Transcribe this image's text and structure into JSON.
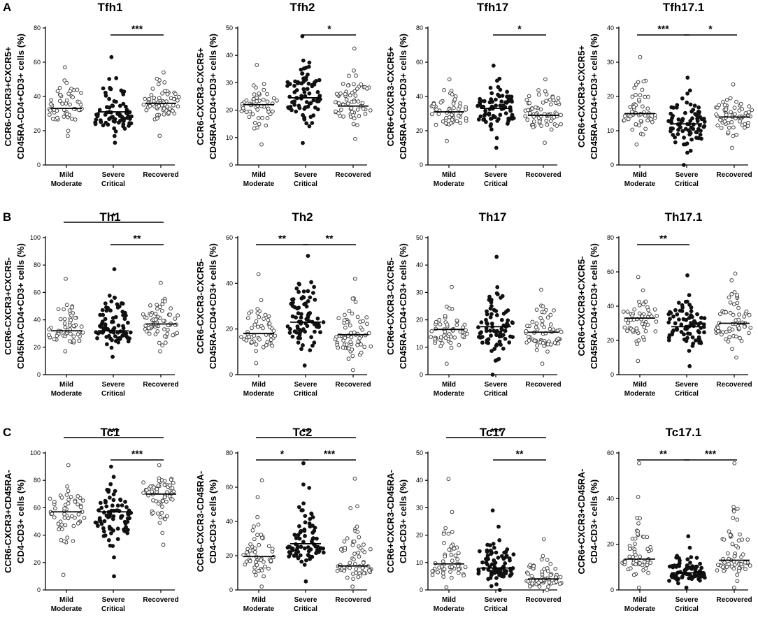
{
  "colors": {
    "axis": "#000000",
    "filled": "#111111",
    "open_fill": "#ffffff",
    "open_stroke": "#444444"
  },
  "chart_data": [
    {
      "type": "scatter",
      "panel_label": "A",
      "title": "Tfh1",
      "ylabel": [
        "CCR6-CXCR3+CXCR5+",
        "CD45RA-CD4+CD3+ cells (%)"
      ],
      "ylim": [
        0,
        80
      ],
      "yticks": [
        0,
        20,
        40,
        60,
        80
      ],
      "categories": [
        [
          "Mild",
          "Moderate"
        ],
        [
          "Severe",
          "Critical"
        ],
        [
          "Recovered"
        ]
      ],
      "series": [
        {
          "name": "Mild Moderate",
          "mean": 33,
          "min": 17,
          "max": 57,
          "n": 55
        },
        {
          "name": "Severe Critical",
          "mean": 31,
          "min": 13,
          "max": 63,
          "n": 80
        },
        {
          "name": "Recovered",
          "mean": 36,
          "min": 17,
          "max": 54,
          "n": 65
        }
      ],
      "significance": [
        {
          "from": 1,
          "to": 2,
          "label": "***"
        }
      ]
    },
    {
      "type": "scatter",
      "title": "Tfh2",
      "ylabel": [
        "CCR6-CXCR3-CXCR5+",
        "CD45RA-CD4+CD3+ cells (%)"
      ],
      "ylim": [
        0,
        50
      ],
      "yticks": [
        0,
        10,
        20,
        30,
        40,
        50
      ],
      "categories": [
        [
          "Mild",
          "Moderate"
        ],
        [
          "Severe",
          "Critical"
        ],
        [
          "Recovered"
        ]
      ],
      "series": [
        {
          "name": "Mild Moderate",
          "mean": 22,
          "min": 7.5,
          "max": 36.5,
          "n": 55
        },
        {
          "name": "Severe Critical",
          "mean": 24.5,
          "min": 8,
          "max": 47,
          "n": 80
        },
        {
          "name": "Recovered",
          "mean": 21.5,
          "min": 9.5,
          "max": 42.5,
          "n": 65
        }
      ],
      "significance": [
        {
          "from": 1,
          "to": 2,
          "label": "*"
        }
      ]
    },
    {
      "type": "scatter",
      "title": "Tfh17",
      "ylabel": [
        "CCR6+CXCR3-CXCR5+",
        "CD45RA-CD4+CD3+ cells (%)"
      ],
      "ylim": [
        0,
        80
      ],
      "yticks": [
        0,
        20,
        40,
        60,
        80
      ],
      "categories": [
        [
          "Mild",
          "Moderate"
        ],
        [
          "Severe",
          "Critical"
        ],
        [
          "Recovered"
        ]
      ],
      "series": [
        {
          "name": "Mild Moderate",
          "mean": 31,
          "min": 14,
          "max": 50,
          "n": 55
        },
        {
          "name": "Severe Critical",
          "mean": 33,
          "min": 10,
          "max": 58,
          "n": 80
        },
        {
          "name": "Recovered",
          "mean": 29,
          "min": 13,
          "max": 50,
          "n": 65
        }
      ],
      "significance": [
        {
          "from": 1,
          "to": 2,
          "label": "*"
        }
      ]
    },
    {
      "type": "scatter",
      "title": "Tfh17.1",
      "ylabel": [
        "CCR6+CXCR3+CXCR5+",
        "CD45RA-CD4+CD3+ cells (%)"
      ],
      "ylim": [
        0,
        40
      ],
      "yticks": [
        0,
        10,
        20,
        30,
        40
      ],
      "categories": [
        [
          "Mild",
          "Moderate"
        ],
        [
          "Severe",
          "Critical"
        ],
        [
          "Recovered"
        ]
      ],
      "series": [
        {
          "name": "Mild Moderate",
          "mean": 15,
          "min": 6,
          "max": 31.5,
          "n": 55
        },
        {
          "name": "Severe Critical",
          "mean": 12,
          "min": 0,
          "max": 25.5,
          "n": 80
        },
        {
          "name": "Recovered",
          "mean": 14,
          "min": 5,
          "max": 23.5,
          "n": 65
        }
      ],
      "significance": [
        {
          "from": 0,
          "to": 1,
          "label": "***"
        },
        {
          "from": 1,
          "to": 2,
          "label": "*"
        }
      ]
    },
    {
      "type": "scatter",
      "panel_label": "B",
      "title": "Th1",
      "ylabel": [
        "CCR6-CXCR3+CXCR5-",
        "CD45RA-CD4+CD3+ cells (%)"
      ],
      "ylim": [
        0,
        100
      ],
      "yticks": [
        0,
        20,
        40,
        60,
        80,
        100
      ],
      "categories": [
        [
          "Mild",
          "Moderate"
        ],
        [
          "Severe",
          "Critical"
        ],
        [
          "Recovered"
        ]
      ],
      "series": [
        {
          "name": "Mild Moderate",
          "mean": 32,
          "min": 17,
          "max": 70,
          "n": 55
        },
        {
          "name": "Severe Critical",
          "mean": 32,
          "min": 13,
          "max": 77,
          "n": 80
        },
        {
          "name": "Recovered",
          "mean": 37,
          "min": 17,
          "max": 67,
          "n": 65
        }
      ],
      "significance": [
        {
          "from": 0,
          "to": 2,
          "label": "*"
        },
        {
          "from": 1,
          "to": 2,
          "label": "**"
        }
      ]
    },
    {
      "type": "scatter",
      "title": "Th2",
      "ylabel": [
        "CCR6-CXCR3-CXCR5-",
        "CD45RA-CD4+CD3+ cells (%)"
      ],
      "ylim": [
        0,
        60
      ],
      "yticks": [
        0,
        20,
        40,
        60
      ],
      "categories": [
        [
          "Mild",
          "Moderate"
        ],
        [
          "Severe",
          "Critical"
        ],
        [
          "Recovered"
        ]
      ],
      "series": [
        {
          "name": "Mild Moderate",
          "mean": 18,
          "min": 5,
          "max": 44,
          "n": 55
        },
        {
          "name": "Severe Critical",
          "mean": 23,
          "min": 4,
          "max": 52,
          "n": 80
        },
        {
          "name": "Recovered",
          "mean": 17.5,
          "min": 2,
          "max": 42,
          "n": 65
        }
      ],
      "significance": [
        {
          "from": 0,
          "to": 1,
          "label": "**"
        },
        {
          "from": 1,
          "to": 2,
          "label": "**"
        }
      ]
    },
    {
      "type": "scatter",
      "title": "Th17",
      "ylabel": [
        "CCR6+CXCR3-CXCR5-",
        "CD45RA-CD4+CD3+ cells (%)"
      ],
      "ylim": [
        0,
        50
      ],
      "yticks": [
        0,
        10,
        20,
        30,
        40,
        50
      ],
      "categories": [
        [
          "Mild",
          "Moderate"
        ],
        [
          "Severe",
          "Critical"
        ],
        [
          "Recovered"
        ]
      ],
      "series": [
        {
          "name": "Mild Moderate",
          "mean": 16.5,
          "min": 4,
          "max": 32,
          "n": 55
        },
        {
          "name": "Severe Critical",
          "mean": 17.5,
          "min": 0,
          "max": 43,
          "n": 80
        },
        {
          "name": "Recovered",
          "mean": 15.5,
          "min": 4,
          "max": 31,
          "n": 65
        }
      ],
      "significance": []
    },
    {
      "type": "scatter",
      "title": "Th17.1",
      "ylabel": [
        "CCR6+CXCR3+CXCR5-",
        "CD45RA-CD4+CD3+ cells (%)"
      ],
      "ylim": [
        0,
        80
      ],
      "yticks": [
        0,
        20,
        40,
        60,
        80
      ],
      "categories": [
        [
          "Mild",
          "Moderate"
        ],
        [
          "Severe",
          "Critical"
        ],
        [
          "Recovered"
        ]
      ],
      "series": [
        {
          "name": "Mild Moderate",
          "mean": 33,
          "min": 8,
          "max": 57,
          "n": 55
        },
        {
          "name": "Severe Critical",
          "mean": 28,
          "min": 5,
          "max": 58,
          "n": 80
        },
        {
          "name": "Recovered",
          "mean": 30,
          "min": 10,
          "max": 59,
          "n": 65
        }
      ],
      "significance": [
        {
          "from": 0,
          "to": 1,
          "label": "**"
        }
      ]
    },
    {
      "type": "scatter",
      "panel_label": "C",
      "title": "Tc1",
      "ylabel": [
        "CCR6-CXCR3+CD45RA-",
        "CD4-CD3+ cells (%)"
      ],
      "ylim": [
        0,
        100
      ],
      "yticks": [
        0,
        20,
        40,
        60,
        80,
        100
      ],
      "categories": [
        [
          "Mild",
          "Moderate"
        ],
        [
          "Severe",
          "Critical"
        ],
        [
          "Recovered"
        ]
      ],
      "series": [
        {
          "name": "Mild Moderate",
          "mean": 57,
          "min": 11,
          "max": 91,
          "n": 55
        },
        {
          "name": "Severe Critical",
          "mean": 57,
          "min": 10,
          "max": 90,
          "n": 80
        },
        {
          "name": "Recovered",
          "mean": 70,
          "min": 33,
          "max": 91,
          "n": 65
        }
      ],
      "significance": [
        {
          "from": 0,
          "to": 2,
          "label": "***"
        },
        {
          "from": 1,
          "to": 2,
          "label": "***"
        }
      ]
    },
    {
      "type": "scatter",
      "title": "Tc2",
      "ylabel": [
        "CCR6-CXCR3-CD45RA-",
        "CD4-CD3+ cells (%)"
      ],
      "ylim": [
        0,
        80
      ],
      "yticks": [
        0,
        20,
        40,
        60,
        80
      ],
      "categories": [
        [
          "Mild",
          "Moderate"
        ],
        [
          "Severe",
          "Critical"
        ],
        [
          "Recovered"
        ]
      ],
      "series": [
        {
          "name": "Mild Moderate",
          "mean": 19.5,
          "min": 2,
          "max": 64,
          "n": 55
        },
        {
          "name": "Severe Critical",
          "mean": 27,
          "min": 5,
          "max": 74,
          "n": 80
        },
        {
          "name": "Recovered",
          "mean": 14,
          "min": 2,
          "max": 65,
          "n": 65
        }
      ],
      "significance": [
        {
          "from": 0,
          "to": 2,
          "label": "**"
        },
        {
          "from": 0,
          "to": 1,
          "label": "*"
        },
        {
          "from": 1,
          "to": 2,
          "label": "***"
        }
      ]
    },
    {
      "type": "scatter",
      "title": "Tc17",
      "ylabel": [
        "CCR6+CXCR3-CD45RA-",
        "CD4-CD3+ cells (%)"
      ],
      "ylim": [
        0,
        50
      ],
      "yticks": [
        0,
        10,
        20,
        30,
        40,
        50
      ],
      "categories": [
        [
          "Mild",
          "Moderate"
        ],
        [
          "Severe",
          "Critical"
        ],
        [
          "Recovered"
        ]
      ],
      "series": [
        {
          "name": "Mild Moderate",
          "mean": 9.5,
          "min": 1,
          "max": 40.5,
          "n": 55
        },
        {
          "name": "Severe Critical",
          "mean": 8,
          "min": 0,
          "max": 29,
          "n": 80
        },
        {
          "name": "Recovered",
          "mean": 4,
          "min": 0,
          "max": 18.5,
          "n": 65
        }
      ],
      "significance": [
        {
          "from": 0,
          "to": 2,
          "label": "***"
        },
        {
          "from": 1,
          "to": 2,
          "label": "**"
        }
      ]
    },
    {
      "type": "scatter",
      "title": "Tc17.1",
      "ylabel": [
        "CCR6+CXCR3+CD45RA-",
        "CD4-CD3+ cells (%)"
      ],
      "ylim": [
        0,
        60
      ],
      "yticks": [
        0,
        20,
        40,
        60
      ],
      "categories": [
        [
          "Mild",
          "Moderate"
        ],
        [
          "Severe",
          "Critical"
        ],
        [
          "Recovered"
        ]
      ],
      "series": [
        {
          "name": "Mild Moderate",
          "mean": 13.5,
          "min": 1,
          "max": 55.5,
          "n": 55
        },
        {
          "name": "Severe Critical",
          "mean": 7.5,
          "min": 1,
          "max": 23.5,
          "n": 80
        },
        {
          "name": "Recovered",
          "mean": 13,
          "min": 1,
          "max": 55.5,
          "n": 65
        }
      ],
      "significance": [
        {
          "from": 0,
          "to": 1,
          "label": "**"
        },
        {
          "from": 1,
          "to": 2,
          "label": "***"
        }
      ]
    }
  ]
}
